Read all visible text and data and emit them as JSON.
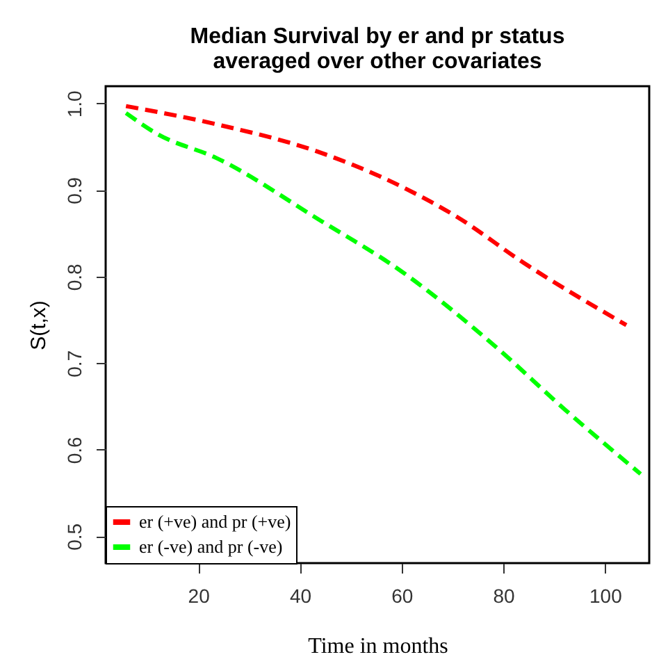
{
  "chart_data": {
    "type": "line",
    "title": "Median Survival by er and pr status\naveraged over other covariates",
    "xlabel": "Time in months",
    "ylabel": "S(t,x)",
    "xlim": [
      1.8,
      108.7
    ],
    "xticks": [
      20,
      40,
      60,
      80,
      100
    ],
    "ylim": [
      0.469,
      1.02
    ],
    "yticks": [
      0.5,
      0.6,
      0.7,
      0.8,
      0.9,
      {
        "value": 1,
        "label": "1.0"
      }
    ],
    "grid": false,
    "legend": "bottom left",
    "marker": "none",
    "line_style": "dashed",
    "series": [
      {
        "name": "er (+ve) and pr (+ve)",
        "color": "#ff0000",
        "x": [
          5.8,
          23.6,
          43.7,
          60,
          70.9,
          84.0,
          104.2
        ],
        "values": [
          0.997,
          0.976,
          0.944,
          0.904,
          0.869,
          0.816,
          0.744
        ]
      },
      {
        "name": "er (-ve) and pr (-ve)",
        "color": "#00ff00",
        "x": [
          5.8,
          11.9,
          23.6,
          43.7,
          60,
          78.5,
          92.2,
          107
        ],
        "values": [
          0.989,
          0.965,
          0.937,
          0.866,
          0.806,
          0.719,
          0.646,
          0.572
        ]
      }
    ]
  }
}
